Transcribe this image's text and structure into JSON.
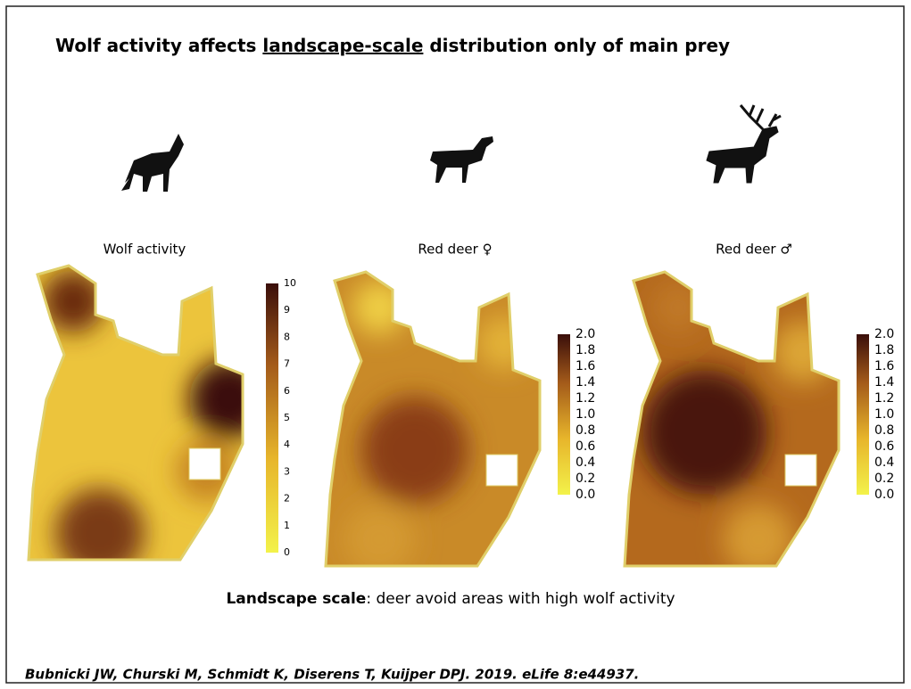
{
  "title": {
    "before": "Wolf activity affects ",
    "underlined": "landscape-scale",
    "after": " distribution only of main prey"
  },
  "panels": [
    {
      "label": "Wolf activity",
      "colorbar_ticks": [
        "0",
        "1",
        "2",
        "3",
        "4",
        "5",
        "6",
        "7",
        "8",
        "9",
        "10"
      ]
    },
    {
      "label": "Red deer ♀",
      "colorbar_ticks": [
        "0.0",
        "0.2",
        "0.4",
        "0.6",
        "0.8",
        "1.0",
        "1.2",
        "1.4",
        "1.6",
        "1.8",
        "2.0"
      ]
    },
    {
      "label": "Red deer ♂",
      "colorbar_ticks": [
        "0.0",
        "0.2",
        "0.4",
        "0.6",
        "0.8",
        "1.0",
        "1.2",
        "1.4",
        "1.6",
        "1.8",
        "2.0"
      ]
    }
  ],
  "caption": {
    "bold": "Landscape scale",
    "rest": ": deer avoid areas with high wolf activity"
  },
  "citation": "Bubnicki JW, Churski M, Schmidt K, Diserens T, Kuijper DPJ. 2019. eLife 8:e44937."
}
